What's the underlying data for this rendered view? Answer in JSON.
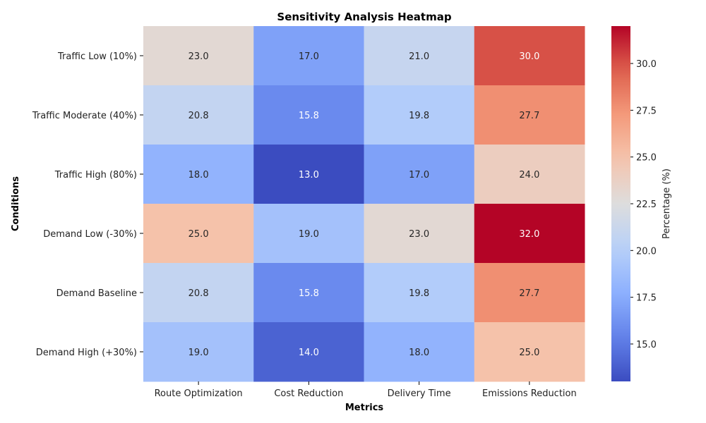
{
  "chart_data": {
    "type": "heatmap",
    "title": "Sensitivity Analysis Heatmap",
    "xlabel": "Metrics",
    "ylabel": "Conditions",
    "columns": [
      "Route Optimization",
      "Cost Reduction",
      "Delivery Time",
      "Emissions Reduction"
    ],
    "rows": [
      "Traffic Low (10%)",
      "Traffic Moderate (40%)",
      "Traffic High (80%)",
      "Demand Low (-30%)",
      "Demand Baseline",
      "Demand High (+30%)"
    ],
    "values": [
      [
        23.0,
        17.0,
        21.0,
        30.0
      ],
      [
        20.8,
        15.8,
        19.8,
        27.7
      ],
      [
        18.0,
        13.0,
        17.0,
        24.0
      ],
      [
        25.0,
        19.0,
        23.0,
        32.0
      ],
      [
        20.8,
        15.8,
        19.8,
        27.7
      ],
      [
        19.0,
        14.0,
        18.0,
        25.0
      ]
    ],
    "value_format_decimals": 1,
    "colormap": "coolwarm",
    "colorbar": {
      "label": "Percentage (%)",
      "range": [
        13.0,
        32.0
      ],
      "ticks": [
        15.0,
        17.5,
        20.0,
        22.5,
        25.0,
        27.5,
        30.0
      ]
    },
    "grid": false,
    "legend": "colorbar-right"
  }
}
